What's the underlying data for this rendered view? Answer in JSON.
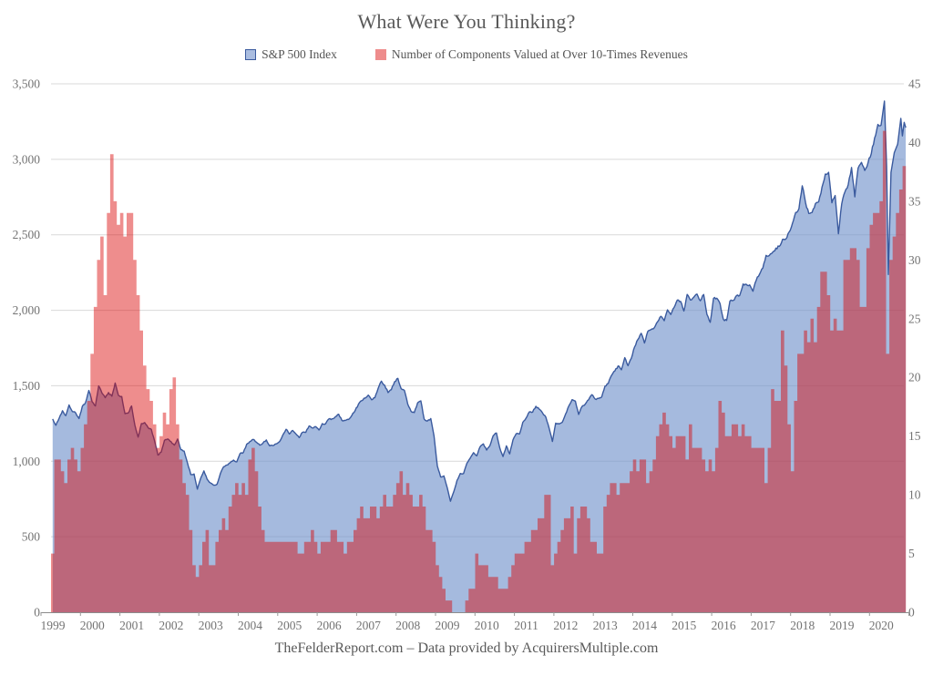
{
  "title": "What Were You Thinking?",
  "footer": "TheFelderReport.com – Data provided by AcquirersMultiple.com",
  "legend": {
    "items": [
      {
        "label": "S&P 500 Index"
      },
      {
        "label": "Number of Components Valued at Over 10-Times Revenues"
      }
    ]
  },
  "colors": {
    "blue_line": "#3a5a9e",
    "blue_fill": "rgba(110,143,202,0.62)",
    "red_fill": "rgba(217,2,2,0.45)",
    "gridline": "#d9d9d9",
    "axis_line": "#8c8c8c",
    "tick": "#999999",
    "axis_text": "#737373"
  },
  "chart_data": {
    "type": "combo",
    "title": "What Were You Thinking?",
    "x_axis": {
      "start_year": 1999,
      "end": 2020.67,
      "year_labels": [
        1999,
        2000,
        2001,
        2002,
        2003,
        2004,
        2005,
        2006,
        2007,
        2008,
        2009,
        2010,
        2011,
        2012,
        2013,
        2014,
        2015,
        2016,
        2017,
        2018,
        2019,
        2020
      ]
    },
    "left_axis": {
      "label_for": "S&P 500 Index",
      "min": 0,
      "max": 3500,
      "ticks": [
        0,
        500,
        1000,
        1500,
        2000,
        2500,
        3000,
        3500
      ],
      "tick_labels": [
        "0",
        "500",
        "1,000",
        "1,500",
        "2,000",
        "2,500",
        "3,000",
        "3,500"
      ]
    },
    "right_axis": {
      "label_for": "Number of Components Valued at Over 10-Times Revenues",
      "min": 0,
      "max": 45,
      "ticks": [
        0,
        5,
        10,
        15,
        20,
        25,
        30,
        35,
        40,
        45
      ],
      "tick_labels": [
        "0",
        "5",
        "10",
        "15",
        "20",
        "25",
        "30",
        "35",
        "40",
        "45"
      ]
    },
    "grid": "horizontal-left-axis-only",
    "legend_position": "top-center",
    "series": [
      {
        "name": "S&P 500 Index",
        "type": "area-line",
        "axis": "left",
        "resolution": "monthly (plus key 2020 swing points)",
        "start": "1999-01",
        "monthly_values": [
          1280,
          1238,
          1286,
          1335,
          1302,
          1373,
          1329,
          1320,
          1283,
          1363,
          1389,
          1469,
          1394,
          1366,
          1499,
          1452,
          1421,
          1455,
          1431,
          1518,
          1437,
          1429,
          1315,
          1320,
          1366,
          1240,
          1160,
          1249,
          1256,
          1224,
          1211,
          1134,
          1041,
          1060,
          1139,
          1148,
          1130,
          1107,
          1147,
          1077,
          1067,
          990,
          912,
          916,
          815,
          886,
          936,
          880,
          856,
          841,
          848,
          917,
          964,
          975,
          990,
          1008,
          996,
          1051,
          1058,
          1112,
          1131,
          1145,
          1126,
          1107,
          1121,
          1141,
          1102,
          1104,
          1115,
          1130,
          1174,
          1212,
          1181,
          1204,
          1181,
          1157,
          1192,
          1191,
          1234,
          1220,
          1229,
          1207,
          1249,
          1248,
          1280,
          1281,
          1295,
          1311,
          1270,
          1270,
          1277,
          1304,
          1336,
          1378,
          1401,
          1418,
          1438,
          1407,
          1421,
          1482,
          1531,
          1503,
          1455,
          1474,
          1527,
          1549,
          1481,
          1468,
          1379,
          1331,
          1323,
          1386,
          1400,
          1280,
          1267,
          1283,
          1166,
          969,
          896,
          903,
          826,
          735,
          798,
          873,
          919,
          919,
          987,
          1021,
          1057,
          1036,
          1096,
          1115,
          1074,
          1104,
          1169,
          1187,
          1089,
          1031,
          1102,
          1049,
          1141,
          1183,
          1181,
          1258,
          1286,
          1327,
          1326,
          1364,
          1345,
          1321,
          1292,
          1219,
          1131,
          1253,
          1247,
          1258,
          1312,
          1366,
          1408,
          1398,
          1310,
          1362,
          1379,
          1407,
          1441,
          1412,
          1416,
          1426,
          1498,
          1515,
          1569,
          1598,
          1631,
          1606,
          1686,
          1633,
          1682,
          1757,
          1806,
          1848,
          1783,
          1859,
          1872,
          1884,
          1924,
          1960,
          1931,
          2003,
          1972,
          2018,
          2068,
          2059,
          1995,
          2105,
          2068,
          2086,
          2107,
          2063,
          2104,
          1972,
          1920,
          2079,
          2080,
          2044,
          1940,
          1932,
          2060,
          2065,
          2097,
          2099,
          2174,
          2171,
          2168,
          2126,
          2199,
          2239,
          2279,
          2364,
          2363,
          2384,
          2412,
          2423,
          2470,
          2472,
          2519,
          2575,
          2648,
          2674,
          2824,
          2714,
          2641,
          2648,
          2705,
          2718,
          2816,
          2902,
          2914,
          2712,
          2760,
          2507,
          2704,
          2785,
          2834,
          2946,
          2752,
          2942,
          2980,
          2926,
          2977,
          3038,
          3141,
          3231
        ],
        "points_2020": [
          [
            2020.04,
            3226
          ],
          [
            2020.125,
            3386
          ],
          [
            2020.18,
            2954
          ],
          [
            2020.225,
            2237
          ],
          [
            2020.29,
            2913
          ],
          [
            2020.375,
            3044
          ],
          [
            2020.46,
            3100
          ],
          [
            2020.54,
            3271
          ],
          [
            2020.58,
            3155
          ],
          [
            2020.625,
            3245
          ],
          [
            2020.665,
            3210
          ]
        ]
      },
      {
        "name": "Number of Components Valued at Over 10-Times Revenues",
        "type": "step-area",
        "axis": "right",
        "resolution": "monthly",
        "start": "1999-01",
        "monthly_values": [
          5,
          13,
          13,
          12,
          11,
          13,
          14,
          13,
          12,
          14,
          16,
          18,
          22,
          26,
          30,
          32,
          27,
          34,
          39,
          35,
          33,
          34,
          32,
          34,
          34,
          30,
          27,
          24,
          21,
          19,
          18,
          16,
          14,
          15,
          17,
          16,
          19,
          20,
          16,
          13,
          11,
          10,
          7,
          4,
          3,
          4,
          6,
          7,
          4,
          4,
          6,
          7,
          8,
          7,
          9,
          10,
          11,
          10,
          11,
          10,
          13,
          14,
          12,
          9,
          7,
          6,
          6,
          6,
          6,
          6,
          6,
          6,
          6,
          6,
          6,
          5,
          5,
          6,
          6,
          7,
          6,
          5,
          6,
          6,
          6,
          7,
          7,
          6,
          6,
          5,
          6,
          6,
          7,
          8,
          9,
          8,
          8,
          9,
          9,
          8,
          9,
          10,
          9,
          9,
          10,
          11,
          12,
          10,
          11,
          10,
          9,
          9,
          10,
          9,
          7,
          7,
          6,
          4,
          3,
          2,
          1,
          1,
          0,
          0,
          0,
          0,
          1,
          2,
          2,
          5,
          4,
          4,
          4,
          3,
          3,
          3,
          2,
          2,
          2,
          3,
          4,
          5,
          5,
          5,
          6,
          6,
          7,
          7,
          8,
          8,
          10,
          10,
          4,
          5,
          6,
          7,
          8,
          8,
          9,
          5,
          8,
          9,
          9,
          8,
          6,
          6,
          5,
          5,
          9,
          10,
          11,
          11,
          10,
          11,
          11,
          11,
          12,
          13,
          12,
          13,
          13,
          11,
          12,
          13,
          15,
          16,
          17,
          16,
          15,
          14,
          15,
          15,
          15,
          13,
          16,
          14,
          14,
          14,
          13,
          12,
          13,
          12,
          14,
          18,
          17,
          15,
          15,
          16,
          16,
          15,
          16,
          15,
          15,
          14,
          14,
          14,
          14,
          11,
          14,
          19,
          18,
          18,
          24,
          21,
          16,
          12,
          18,
          22,
          22,
          24,
          23,
          25,
          23,
          26,
          29,
          29,
          27,
          24,
          25,
          24,
          24,
          30,
          30,
          31,
          31,
          30,
          26,
          26,
          31,
          33,
          34,
          34,
          35,
          41,
          22,
          30,
          32,
          34,
          36,
          38
        ]
      }
    ]
  }
}
